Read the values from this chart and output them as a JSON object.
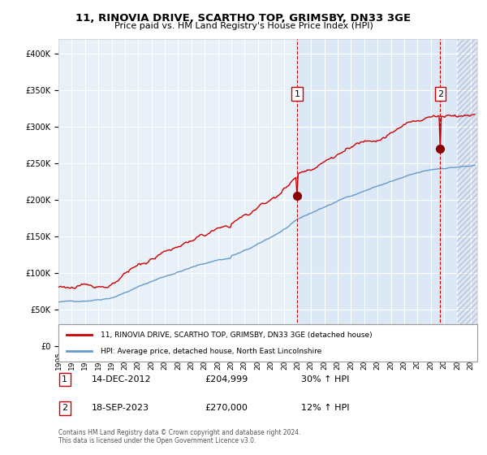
{
  "title": "11, RINOVIA DRIVE, SCARTHO TOP, GRIMSBY, DN33 3GE",
  "subtitle": "Price paid vs. HM Land Registry's House Price Index (HPI)",
  "legend_line1": "11, RINOVIA DRIVE, SCARTHO TOP, GRIMSBY, DN33 3GE (detached house)",
  "legend_line2": "HPI: Average price, detached house, North East Lincolnshire",
  "annotation1_date": "14-DEC-2012",
  "annotation1_price": "£204,999",
  "annotation1_hpi": "30% ↑ HPI",
  "annotation2_date": "18-SEP-2023",
  "annotation2_price": "£270,000",
  "annotation2_hpi": "12% ↑ HPI",
  "footnote": "Contains HM Land Registry data © Crown copyright and database right 2024.\nThis data is licensed under the Open Government Licence v3.0.",
  "hpi_color": "#6699cc",
  "price_color": "#cc0000",
  "marker_color": "#8b0000",
  "vline_color": "#cc0000",
  "background_plot": "#e8f0f8",
  "background_shade": "#dce8f5",
  "ylim": [
    0,
    420000
  ],
  "yticks": [
    0,
    50000,
    100000,
    150000,
    200000,
    250000,
    300000,
    350000,
    400000
  ],
  "sale1_x": 2012.96,
  "sale1_y": 204999,
  "sale2_x": 2023.72,
  "sale2_y": 270000,
  "shade_start": 2012.96,
  "xmin": 1995.0,
  "xmax": 2026.5,
  "hatch_start": 2025.0,
  "xtick_years": [
    1995,
    1996,
    1997,
    1998,
    1999,
    2000,
    2001,
    2002,
    2003,
    2004,
    2005,
    2006,
    2007,
    2008,
    2009,
    2010,
    2011,
    2012,
    2013,
    2014,
    2015,
    2016,
    2017,
    2018,
    2019,
    2020,
    2021,
    2022,
    2023,
    2024,
    2025,
    2026
  ]
}
